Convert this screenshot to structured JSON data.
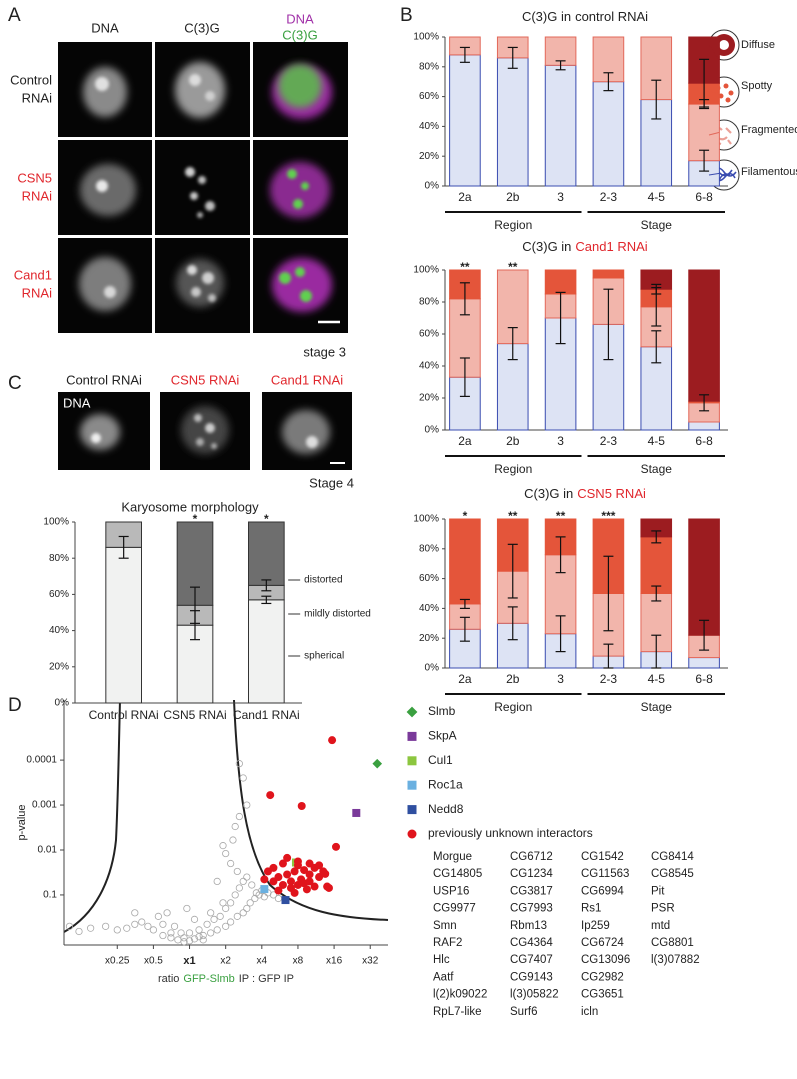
{
  "panel_labels": [
    "A",
    "B",
    "C",
    "D"
  ],
  "panel_a": {
    "columns": [
      "DNA",
      "C(3)G"
    ],
    "merge": [
      "DNA",
      "C(3)G"
    ],
    "rows": [
      [
        "Control",
        "RNAi"
      ],
      [
        "CSN5",
        "RNAi"
      ],
      [
        "Cand1",
        "RNAi"
      ]
    ],
    "stage": "stage 3"
  },
  "panel_c": {
    "columns": [
      "Control RNAi",
      "CSN5 RNAi",
      "Cand1 RNAi"
    ],
    "channel": "DNA",
    "stage": "Stage 4"
  },
  "chart_data": [
    {
      "type": "bar",
      "stacked": true,
      "legend": "right",
      "title": [
        "C(3)G in",
        "control RNAi"
      ],
      "title_colors": [
        "#222",
        "#222"
      ],
      "categories": [
        "2a",
        "2b",
        "3",
        "2-3",
        "4-5",
        "6-8"
      ],
      "groups": [
        {
          "label": "Region",
          "categories": [
            "2a",
            "2b",
            "3"
          ]
        },
        {
          "label": "Stage",
          "categories": [
            "2-3",
            "4-5",
            "6-8"
          ]
        }
      ],
      "ylim": [
        0,
        100
      ],
      "yticks": [
        {
          "value": 0,
          "label": "0%"
        },
        {
          "value": 20,
          "label": "20%"
        },
        {
          "value": 40,
          "label": "40%"
        },
        {
          "value": 60,
          "label": "60%"
        },
        {
          "value": 80,
          "label": "80%"
        },
        {
          "value": 100,
          "label": "100%"
        }
      ],
      "series": [
        {
          "name": "Filamentous",
          "color": "#dde3f4",
          "stroke": "#3a4cb0",
          "values": [
            88,
            86,
            81,
            70,
            58,
            17
          ],
          "errors": [
            5,
            7,
            3,
            6,
            13,
            7
          ]
        },
        {
          "name": "Fragmented",
          "color": "#f2b5ab",
          "stroke": "#e2685a",
          "values": [
            12,
            14,
            19,
            30,
            42,
            38
          ],
          "errors": [
            null,
            null,
            null,
            null,
            null,
            3
          ]
        },
        {
          "name": "Spotty",
          "color": "#e4553a",
          "stroke": "#e4553a",
          "values": [
            0,
            0,
            0,
            0,
            0,
            14
          ],
          "errors": [
            null,
            null,
            null,
            null,
            null,
            16
          ]
        },
        {
          "name": "Diffuse",
          "color": "#9c1c20",
          "stroke": "#9c1c20",
          "values": [
            0,
            0,
            0,
            0,
            0,
            31
          ]
        }
      ]
    },
    {
      "type": "bar",
      "stacked": true,
      "title": [
        "C(3)G in",
        "Cand1 RNAi"
      ],
      "title_colors": [
        "#222",
        "#e0262c"
      ],
      "categories": [
        "2a",
        "2b",
        "3",
        "2-3",
        "4-5",
        "6-8"
      ],
      "annotations": [
        "**",
        "**",
        null,
        null,
        null,
        null
      ],
      "groups": [
        {
          "label": "Region",
          "categories": [
            "2a",
            "2b",
            "3"
          ]
        },
        {
          "label": "Stage",
          "categories": [
            "2-3",
            "4-5",
            "6-8"
          ]
        }
      ],
      "ylim": [
        0,
        100
      ],
      "yticks": [
        {
          "value": 0,
          "label": "0%"
        },
        {
          "value": 20,
          "label": "20%"
        },
        {
          "value": 40,
          "label": "40%"
        },
        {
          "value": 60,
          "label": "60%"
        },
        {
          "value": 80,
          "label": "80%"
        },
        {
          "value": 100,
          "label": "100%"
        }
      ],
      "series": [
        {
          "name": "Filamentous",
          "color": "#dde3f4",
          "stroke": "#3a4cb0",
          "values": [
            33,
            54,
            70,
            66,
            52,
            5
          ],
          "errors": [
            12,
            10,
            16,
            22,
            10,
            null
          ]
        },
        {
          "name": "Fragmented",
          "color": "#f2b5ab",
          "stroke": "#e2685a",
          "values": [
            49,
            46,
            15,
            29,
            25,
            12
          ],
          "errors": [
            10,
            null,
            null,
            null,
            12,
            5
          ]
        },
        {
          "name": "Spotty",
          "color": "#e4553a",
          "stroke": "#e4553a",
          "values": [
            18,
            0,
            15,
            5,
            11,
            1
          ],
          "errors": [
            null,
            null,
            null,
            null,
            3,
            null
          ]
        },
        {
          "name": "Diffuse",
          "color": "#9c1c20",
          "stroke": "#9c1c20",
          "values": [
            0,
            0,
            0,
            0,
            12,
            82
          ]
        }
      ]
    },
    {
      "type": "bar",
      "stacked": true,
      "title": [
        "C(3)G in",
        "CSN5 RNAi"
      ],
      "title_colors": [
        "#222",
        "#e0262c"
      ],
      "categories": [
        "2a",
        "2b",
        "3",
        "2-3",
        "4-5",
        "6-8"
      ],
      "annotations": [
        "*",
        "**",
        "**",
        "***",
        null,
        null
      ],
      "groups": [
        {
          "label": "Region",
          "categories": [
            "2a",
            "2b",
            "3"
          ]
        },
        {
          "label": "Stage",
          "categories": [
            "2-3",
            "4-5",
            "6-8"
          ]
        }
      ],
      "ylim": [
        0,
        100
      ],
      "yticks": [
        {
          "value": 0,
          "label": "0%"
        },
        {
          "value": 20,
          "label": "20%"
        },
        {
          "value": 40,
          "label": "40%"
        },
        {
          "value": 60,
          "label": "60%"
        },
        {
          "value": 80,
          "label": "80%"
        },
        {
          "value": 100,
          "label": "100%"
        }
      ],
      "series": [
        {
          "name": "Filamentous",
          "color": "#dde3f4",
          "stroke": "#3a4cb0",
          "values": [
            26,
            30,
            23,
            8,
            11,
            7
          ],
          "errors": [
            8,
            11,
            12,
            8,
            11,
            null
          ]
        },
        {
          "name": "Fragmented",
          "color": "#f2b5ab",
          "stroke": "#e2685a",
          "values": [
            17,
            35,
            53,
            42,
            39,
            15
          ],
          "errors": [
            3,
            18,
            12,
            25,
            5,
            10
          ]
        },
        {
          "name": "Spotty",
          "color": "#e4553a",
          "stroke": "#e4553a",
          "values": [
            57,
            35,
            24,
            50,
            38,
            0
          ],
          "errors": [
            null,
            null,
            null,
            null,
            4,
            null
          ]
        },
        {
          "name": "Diffuse",
          "color": "#9c1c20",
          "stroke": "#9c1c20",
          "values": [
            0,
            0,
            0,
            0,
            12,
            78
          ]
        }
      ]
    },
    {
      "type": "bar",
      "stacked": true,
      "legend": "right",
      "title": "Karyosome morphology",
      "categories": [
        "Control RNAi",
        "CSN5 RNAi",
        "Cand1 RNAi"
      ],
      "category_colors": [
        "#222",
        "#e0262c",
        "#e0262c"
      ],
      "annotations": [
        null,
        "*",
        "*"
      ],
      "ylim": [
        0,
        100
      ],
      "yticks": [
        {
          "value": 0,
          "label": "0%"
        },
        {
          "value": 20,
          "label": "20%"
        },
        {
          "value": 40,
          "label": "40%"
        },
        {
          "value": 60,
          "label": "60%"
        },
        {
          "value": 80,
          "label": "80%"
        },
        {
          "value": 100,
          "label": "100%"
        }
      ],
      "series": [
        {
          "name": "spherical",
          "color": "#f1f2f1",
          "stroke": "#333",
          "values": [
            86,
            43,
            57
          ],
          "errors": [
            6,
            8,
            2
          ]
        },
        {
          "name": "mildly distorted",
          "color": "#b9b9b9",
          "stroke": "#333",
          "values": [
            14,
            11,
            8
          ],
          "errors": [
            null,
            10,
            3
          ]
        },
        {
          "name": "distorted",
          "color": "#6e6e6e",
          "stroke": "#333",
          "values": [
            0,
            46,
            35
          ]
        }
      ]
    },
    {
      "type": "scatter",
      "xlog": true,
      "ylog": true,
      "x_label": [
        "ratio",
        "GFP-Slmb",
        "IP : GFP IP"
      ],
      "x_label_colors": [
        "#333",
        "#3aa040",
        "#333"
      ],
      "y_label": "p-value",
      "xlim": [
        0.09,
        45
      ],
      "ylim": [
        1.3,
        4.6e-06
      ],
      "xticks": [
        {
          "value": 0.25,
          "label": "x0.25"
        },
        {
          "value": 0.5,
          "label": "x0.5"
        },
        {
          "value": 1,
          "label": "x1",
          "bold": true
        },
        {
          "value": 2,
          "label": "x2"
        },
        {
          "value": 4,
          "label": "x4"
        },
        {
          "value": 8,
          "label": "x8"
        },
        {
          "value": 16,
          "label": "x16"
        },
        {
          "value": 32,
          "label": "x32"
        }
      ],
      "yticks": [
        0.1,
        0.01,
        0.001,
        0.0001
      ],
      "series": [
        {
          "marker": "open-circle",
          "color": "#a8a8a8",
          "x": [
            0.6,
            0.7,
            0.8,
            0.9,
            1,
            1.1,
            1.2,
            1.3,
            1.5,
            1.7,
            2,
            2.2,
            2.5,
            2.8,
            3,
            3.2,
            3.5,
            3.8,
            4,
            0.5,
            0.45,
            0.4,
            0.35,
            0.3,
            0.25,
            0.2,
            0.15,
            0.12,
            0.55,
            0.65,
            0.75,
            0.85,
            1.2,
            1.4,
            1.6,
            1.8,
            2,
            2.2,
            2.4,
            2.6,
            2.8,
            3,
            2.5,
            2.2,
            2,
            2.3,
            2.4,
            2.6,
            3,
            2.8,
            2.6,
            1.9,
            1.7,
            3.3,
            3.6,
            4.2,
            4.5,
            5,
            5.5,
            1,
            0.9,
            1.3,
            0.7,
            0.6,
            1.1,
            1.5,
            1.9,
            0.95,
            0.35,
            0.1
          ],
          "values": [
            0.8,
            0.9,
            1,
            1.1,
            1.05,
            0.95,
            0.85,
            0.8,
            0.7,
            0.6,
            0.5,
            0.4,
            0.3,
            0.25,
            0.2,
            0.15,
            0.12,
            0.1,
            0.08,
            0.6,
            0.5,
            0.4,
            0.45,
            0.55,
            0.6,
            0.5,
            0.55,
            0.65,
            0.3,
            0.25,
            0.5,
            0.7,
            0.6,
            0.45,
            0.35,
            0.3,
            0.2,
            0.15,
            0.1,
            0.07,
            0.05,
            0.04,
            0.03,
            0.02,
            0.012,
            0.006,
            0.003,
            0.0018,
            0.001,
            0.00025,
            0.00012,
            0.008,
            0.05,
            0.06,
            0.09,
            0.11,
            0.09,
            0.1,
            0.12,
            0.7,
            0.9,
            1,
            0.7,
            0.45,
            0.35,
            0.25,
            0.15,
            0.2,
            0.25,
            0.5
          ]
        },
        {
          "name": "Slmb",
          "marker": "diamond",
          "color": "#3aa040",
          "x": [
            36.6
          ],
          "values": [
            0.00012
          ]
        },
        {
          "name": "SkpA",
          "marker": "square",
          "color": "#7a3a9a",
          "x": [
            24.5
          ],
          "values": [
            0.0015
          ]
        },
        {
          "name": "Cul1",
          "marker": "square",
          "color": "#8cc63f",
          "x": [
            7.7
          ],
          "values": [
            0.019
          ]
        },
        {
          "name": "Roc1a",
          "marker": "square",
          "color": "#6ab0e0",
          "x": [
            4.2
          ],
          "values": [
            0.074
          ]
        },
        {
          "name": "Nedd8",
          "marker": "square",
          "color": "#2f4fa0",
          "x": [
            6.3
          ],
          "values": [
            0.13
          ]
        },
        {
          "name": "previously unknown interactors",
          "marker": "circle",
          "color": "#e0141c",
          "x": [
            4.5,
            5,
            5.5,
            6,
            6.5,
            7,
            7.5,
            8,
            8.5,
            9,
            10,
            11,
            12,
            6,
            7,
            8,
            9,
            10,
            5,
            4.2,
            5.5,
            7.5,
            9.5,
            11,
            13,
            14,
            14.5,
            6.5,
            8,
            10,
            12,
            15.4,
            4.7,
            8.6,
            16.6,
            13.5
          ],
          "values": [
            0.03,
            0.025,
            0.04,
            0.02,
            0.035,
            0.05,
            0.03,
            0.022,
            0.045,
            0.028,
            0.035,
            0.025,
            0.04,
            0.06,
            0.07,
            0.06,
            0.055,
            0.05,
            0.05,
            0.045,
            0.08,
            0.09,
            0.075,
            0.065,
            0.03,
            0.065,
            0.07,
            0.015,
            0.018,
            0.02,
            0.022,
            3.6e-05,
            0.0006,
            0.00105,
            0.0085,
            0.034
          ]
        }
      ],
      "interactor_names": [
        [
          "Morgue",
          "CG14805",
          "USP16",
          "CG9977",
          "Smn",
          "RAF2",
          "Hlc",
          "Aatf",
          "l(2)k09022",
          "RpL7-like"
        ],
        [
          "CG6712",
          "CG1234",
          "CG3817",
          "CG7993",
          "Rbm13",
          "CG4364",
          "CG7407",
          "CG9143",
          "l(3)05822",
          "Surf6"
        ],
        [
          "CG1542",
          "CG11563",
          "CG6994",
          "Rs1",
          "Ip259",
          "CG6724",
          "CG13096",
          "CG2982",
          "CG3651",
          "icln"
        ],
        [
          "CG8414",
          "CG8545",
          "Pit",
          "PSR",
          "mtd",
          "CG8801",
          "l(3)07882"
        ]
      ]
    }
  ]
}
